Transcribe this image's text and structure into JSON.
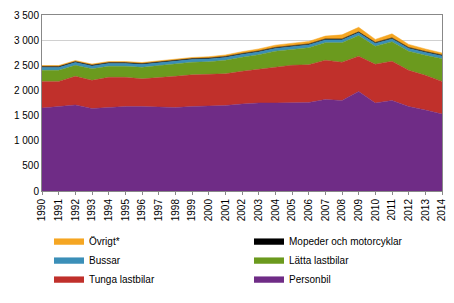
{
  "chart_data": {
    "type": "area",
    "stacked": true,
    "grid": true,
    "legend": "bottom",
    "categories": [
      "1990",
      "1991",
      "1992",
      "1993",
      "1994",
      "1995",
      "1996",
      "1997",
      "1998",
      "1999",
      "2000",
      "2001",
      "2002",
      "2003",
      "2004",
      "2005",
      "2006",
      "2007",
      "2008",
      "2009",
      "2010",
      "2011",
      "2012",
      "2013",
      "2014"
    ],
    "ylim": [
      0,
      3500
    ],
    "yticks": [
      0,
      500,
      {
        "value": 1000,
        "label": "1 000"
      },
      {
        "value": 1500,
        "label": "1 500"
      },
      {
        "value": 2000,
        "label": "2 000"
      },
      {
        "value": 2500,
        "label": "2 500"
      },
      {
        "value": 3000,
        "label": "3 000"
      },
      {
        "value": 3500,
        "label": "3 500"
      }
    ],
    "series": [
      {
        "name": "Personbil",
        "color": "#6f2c86",
        "values": [
          1650,
          1680,
          1710,
          1640,
          1660,
          1680,
          1680,
          1670,
          1660,
          1680,
          1690,
          1700,
          1730,
          1750,
          1750,
          1750,
          1760,
          1820,
          1800,
          1980,
          1750,
          1800,
          1680,
          1610,
          1530
        ]
      },
      {
        "name": "Tunga lastbilar",
        "color": "#c0302b",
        "values": [
          530,
          500,
          570,
          560,
          600,
          580,
          550,
          580,
          620,
          630,
          630,
          630,
          650,
          670,
          710,
          750,
          750,
          780,
          760,
          700,
          770,
          780,
          720,
          690,
          650
        ]
      },
      {
        "name": "Lätta lastbilar",
        "color": "#6b9a1e",
        "values": [
          220,
          220,
          220,
          230,
          220,
          220,
          230,
          240,
          240,
          250,
          250,
          270,
          280,
          290,
          320,
          320,
          340,
          350,
          390,
          410,
          360,
          390,
          380,
          400,
          450
        ]
      },
      {
        "name": "Bussar",
        "color": "#3b8fb8",
        "values": [
          60,
          60,
          60,
          60,
          60,
          60,
          60,
          60,
          60,
          60,
          60,
          60,
          60,
          60,
          60,
          60,
          60,
          60,
          60,
          60,
          60,
          60,
          60,
          60,
          60
        ]
      },
      {
        "name": "Mopeder och motorcyklar",
        "color": "#000000",
        "values": [
          15,
          15,
          15,
          15,
          15,
          15,
          15,
          15,
          15,
          15,
          15,
          15,
          15,
          15,
          15,
          15,
          15,
          15,
          15,
          15,
          15,
          15,
          15,
          15,
          15
        ]
      },
      {
        "name": "Övrigt*",
        "color": "#f5a623",
        "values": [
          20,
          20,
          20,
          20,
          20,
          20,
          20,
          20,
          20,
          20,
          25,
          30,
          35,
          40,
          45,
          50,
          50,
          55,
          80,
          90,
          60,
          80,
          60,
          50,
          40
        ]
      }
    ]
  }
}
